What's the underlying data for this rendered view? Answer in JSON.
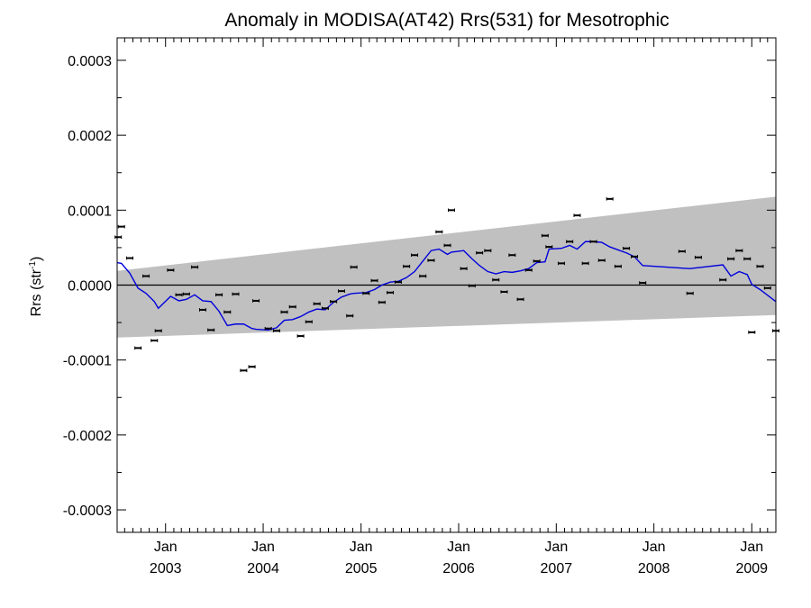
{
  "chart_data": {
    "type": "line",
    "title": "Anomaly in MODISA(AT42) Rrs(531) for Mesotrophic",
    "ylabel_main": "Rrs (str",
    "ylabel_sup": "-1",
    "ylabel_close": ")",
    "xlim": [
      "2002-07-04",
      "2009-04-01"
    ],
    "ylim": [
      -0.00033,
      0.00033
    ],
    "yticks": [
      {
        "value": 0.0003,
        "label": "0.0003"
      },
      {
        "value": 0.0002,
        "label": "0.0002"
      },
      {
        "value": 0.0001,
        "label": "0.0001"
      },
      {
        "value": 0.0,
        "label": "0.0000"
      },
      {
        "value": -0.0001,
        "label": "-0.0001"
      },
      {
        "value": -0.0002,
        "label": "-0.0002"
      },
      {
        "value": -0.0003,
        "label": "-0.0003"
      }
    ],
    "xticks": [
      {
        "date": "2003-01-01",
        "month": "Jan",
        "year": "2003"
      },
      {
        "date": "2004-01-01",
        "month": "Jan",
        "year": "2004"
      },
      {
        "date": "2005-01-01",
        "month": "Jan",
        "year": "2005"
      },
      {
        "date": "2006-01-01",
        "month": "Jan",
        "year": "2006"
      },
      {
        "date": "2007-01-01",
        "month": "Jan",
        "year": "2007"
      },
      {
        "date": "2008-01-01",
        "month": "Jan",
        "year": "2008"
      },
      {
        "date": "2009-01-01",
        "month": "Jan",
        "year": "2009"
      }
    ],
    "band": {
      "upper": [
        [
          "2002-07-04",
          1.9e-05
        ],
        [
          "2009-04-01",
          0.000118
        ]
      ],
      "lower": [
        [
          "2002-07-04",
          -7e-05
        ],
        [
          "2009-04-01",
          -4e-05
        ]
      ]
    },
    "zero_line": 0.0,
    "points": [
      [
        "2002-07-08",
        6.4e-05
      ],
      [
        "2002-07-20",
        7.8e-05
      ],
      [
        "2002-08-20",
        3.6e-05
      ],
      [
        "2002-09-20",
        -8.4e-05
      ],
      [
        "2002-10-20",
        1.2e-05
      ],
      [
        "2002-11-20",
        -7.4e-05
      ],
      [
        "2002-12-05",
        -6.1e-05
      ],
      [
        "2003-01-20",
        2e-05
      ],
      [
        "2003-02-20",
        -1.3e-05
      ],
      [
        "2003-03-20",
        -1.2e-05
      ],
      [
        "2003-04-20",
        2.4e-05
      ],
      [
        "2003-05-20",
        -3.3e-05
      ],
      [
        "2003-06-20",
        -6e-05
      ],
      [
        "2003-07-20",
        -1.3e-05
      ],
      [
        "2003-08-20",
        -3.6e-05
      ],
      [
        "2003-09-20",
        -1.2e-05
      ],
      [
        "2003-10-20",
        -0.000114
      ],
      [
        "2003-11-20",
        -0.000109
      ],
      [
        "2003-12-05",
        -2.1e-05
      ],
      [
        "2004-01-20",
        -5.8e-05
      ],
      [
        "2004-02-20",
        -6.1e-05
      ],
      [
        "2004-03-20",
        -3.6e-05
      ],
      [
        "2004-04-20",
        -2.9e-05
      ],
      [
        "2004-05-20",
        -6.8e-05
      ],
      [
        "2004-06-20",
        -4.9e-05
      ],
      [
        "2004-07-20",
        -2.5e-05
      ],
      [
        "2004-08-20",
        -3.1e-05
      ],
      [
        "2004-09-20",
        -2.2e-05
      ],
      [
        "2004-10-20",
        -8e-06
      ],
      [
        "2004-11-20",
        -4.1e-05
      ],
      [
        "2004-12-05",
        2.4e-05
      ],
      [
        "2005-01-20",
        -1.1e-05
      ],
      [
        "2005-02-20",
        6e-06
      ],
      [
        "2005-03-20",
        -2.3e-05
      ],
      [
        "2005-04-20",
        -1e-05
      ],
      [
        "2005-05-20",
        4e-06
      ],
      [
        "2005-06-20",
        2.5e-05
      ],
      [
        "2005-07-20",
        4e-05
      ],
      [
        "2005-08-20",
        1.2e-05
      ],
      [
        "2005-09-20",
        3.3e-05
      ],
      [
        "2005-10-20",
        7.1e-05
      ],
      [
        "2005-11-20",
        5.3e-05
      ],
      [
        "2005-12-05",
        0.0001
      ],
      [
        "2006-01-20",
        2.2e-05
      ],
      [
        "2006-02-20",
        -1e-06
      ],
      [
        "2006-03-20",
        4.3e-05
      ],
      [
        "2006-04-20",
        4.6e-05
      ],
      [
        "2006-05-20",
        7e-06
      ],
      [
        "2006-06-20",
        -9e-06
      ],
      [
        "2006-07-20",
        4e-05
      ],
      [
        "2006-08-20",
        -1.9e-05
      ],
      [
        "2006-09-20",
        2e-05
      ],
      [
        "2006-10-20",
        3.2e-05
      ],
      [
        "2006-11-20",
        6.6e-05
      ],
      [
        "2006-12-05",
        5.1e-05
      ],
      [
        "2007-01-20",
        2.9e-05
      ],
      [
        "2007-02-20",
        5.8e-05
      ],
      [
        "2007-03-20",
        9.3e-05
      ],
      [
        "2007-04-20",
        2.9e-05
      ],
      [
        "2007-05-20",
        5.8e-05
      ],
      [
        "2007-06-20",
        3.3e-05
      ],
      [
        "2007-07-20",
        0.000115
      ],
      [
        "2007-08-20",
        2.5e-05
      ],
      [
        "2007-09-20",
        4.9e-05
      ],
      [
        "2007-10-20",
        3.8e-05
      ],
      [
        "2007-11-20",
        3e-06
      ],
      [
        "2008-04-15",
        4.5e-05
      ],
      [
        "2008-05-15",
        -1.1e-05
      ],
      [
        "2008-06-15",
        3.7e-05
      ],
      [
        "2008-09-15",
        7e-06
      ],
      [
        "2008-10-15",
        3.5e-05
      ],
      [
        "2008-11-15",
        4.6e-05
      ],
      [
        "2008-12-15",
        3.5e-05
      ],
      [
        "2009-01-01",
        -6.3e-05
      ],
      [
        "2009-02-01",
        2.5e-05
      ],
      [
        "2009-03-01",
        -4e-06
      ],
      [
        "2009-04-01",
        -6.1e-05
      ]
    ],
    "running_mean": [
      [
        "2002-07-04",
        3e-05
      ],
      [
        "2002-07-20",
        2.9e-05
      ],
      [
        "2002-08-20",
        1.6e-05
      ],
      [
        "2002-09-20",
        -4e-06
      ],
      [
        "2002-10-20",
        -1.1e-05
      ],
      [
        "2002-11-20",
        -2.2e-05
      ],
      [
        "2002-12-05",
        -3.1e-05
      ],
      [
        "2003-01-20",
        -1.5e-05
      ],
      [
        "2003-02-20",
        -2.1e-05
      ],
      [
        "2003-03-20",
        -1.9e-05
      ],
      [
        "2003-04-20",
        -1.3e-05
      ],
      [
        "2003-05-20",
        -2.1e-05
      ],
      [
        "2003-06-20",
        -2.2e-05
      ],
      [
        "2003-07-20",
        -3.5e-05
      ],
      [
        "2003-08-20",
        -5.4e-05
      ],
      [
        "2003-09-20",
        -5.2e-05
      ],
      [
        "2003-10-20",
        -5.2e-05
      ],
      [
        "2003-11-20",
        -5.8e-05
      ],
      [
        "2003-12-05",
        -5.9e-05
      ],
      [
        "2004-01-20",
        -6e-05
      ],
      [
        "2004-02-20",
        -5.7e-05
      ],
      [
        "2004-03-20",
        -4.7e-05
      ],
      [
        "2004-04-20",
        -4.6e-05
      ],
      [
        "2004-05-20",
        -4.2e-05
      ],
      [
        "2004-06-20",
        -3.6e-05
      ],
      [
        "2004-07-20",
        -3.2e-05
      ],
      [
        "2004-08-20",
        -3.3e-05
      ],
      [
        "2004-09-20",
        -2.3e-05
      ],
      [
        "2004-10-20",
        -1.6e-05
      ],
      [
        "2004-11-20",
        -1.2e-05
      ],
      [
        "2004-12-05",
        -1.1e-05
      ],
      [
        "2005-01-20",
        -1e-05
      ],
      [
        "2005-02-20",
        -6e-06
      ],
      [
        "2005-03-20",
        0.0
      ],
      [
        "2005-04-20",
        4e-06
      ],
      [
        "2005-05-20",
        5e-06
      ],
      [
        "2005-06-20",
        1e-05
      ],
      [
        "2005-07-20",
        1.8e-05
      ],
      [
        "2005-08-20",
        3.2e-05
      ],
      [
        "2005-09-20",
        4.6e-05
      ],
      [
        "2005-10-20",
        4.8e-05
      ],
      [
        "2005-11-20",
        4.1e-05
      ],
      [
        "2005-12-05",
        4.4e-05
      ],
      [
        "2006-01-20",
        4.6e-05
      ],
      [
        "2006-02-20",
        3.5e-05
      ],
      [
        "2006-03-20",
        2.6e-05
      ],
      [
        "2006-04-20",
        1.8e-05
      ],
      [
        "2006-05-20",
        1.5e-05
      ],
      [
        "2006-06-20",
        1.8e-05
      ],
      [
        "2006-07-20",
        1.7e-05
      ],
      [
        "2006-08-20",
        1.9e-05
      ],
      [
        "2006-09-20",
        2.2e-05
      ],
      [
        "2006-10-20",
        3e-05
      ],
      [
        "2006-11-20",
        3.1e-05
      ],
      [
        "2006-12-05",
        4.8e-05
      ],
      [
        "2007-01-20",
        4.9e-05
      ],
      [
        "2007-02-20",
        5.3e-05
      ],
      [
        "2007-03-20",
        4.8e-05
      ],
      [
        "2007-04-20",
        5.8e-05
      ],
      [
        "2007-05-20",
        5.8e-05
      ],
      [
        "2007-06-20",
        5.7e-05
      ],
      [
        "2007-07-20",
        5.1e-05
      ],
      [
        "2007-08-20",
        4.7e-05
      ],
      [
        "2007-09-20",
        4.3e-05
      ],
      [
        "2007-10-20",
        3.8e-05
      ],
      [
        "2007-11-20",
        2.6e-05
      ],
      [
        "2008-05-15",
        2.2e-05
      ],
      [
        "2008-09-15",
        2.7e-05
      ],
      [
        "2008-10-15",
        1.2e-05
      ],
      [
        "2008-11-15",
        1.8e-05
      ],
      [
        "2008-12-15",
        1.4e-05
      ],
      [
        "2009-01-01",
        1e-06
      ],
      [
        "2009-02-01",
        -6e-06
      ],
      [
        "2009-04-01",
        -2.2e-05
      ]
    ],
    "grid": false,
    "legend": "none",
    "colors": {
      "band": "#c0c0c0",
      "running_mean": "#0000dd",
      "points": "#000000",
      "zero_line": "#000000"
    }
  }
}
